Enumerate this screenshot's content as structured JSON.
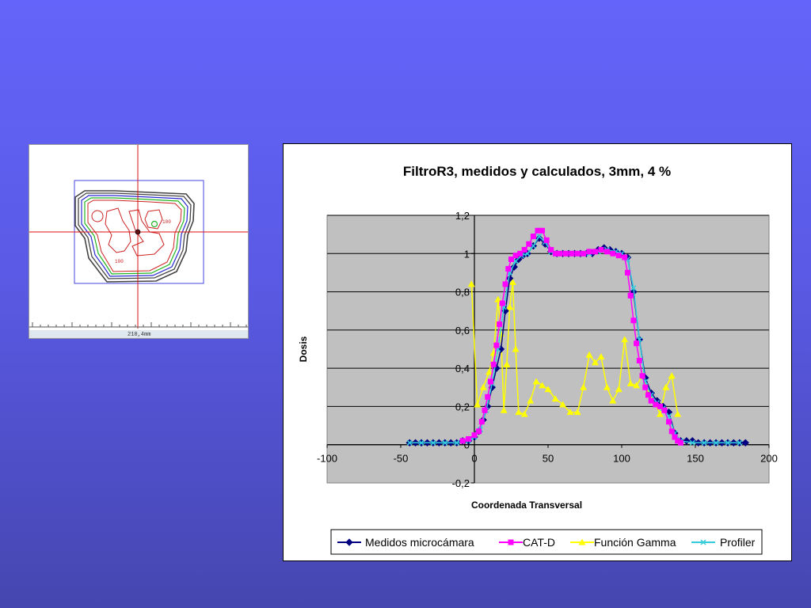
{
  "thumbnail": {
    "scale_label": "210,4mm",
    "contour_labels": [
      "100",
      "100",
      "100"
    ],
    "colors": {
      "contour_outer": "#444444",
      "contour_blue": "#2a2ad0",
      "contour_green": "#22b522",
      "contour_red": "#cc2222",
      "crosshair": "#dd1111",
      "field": "#4444dd"
    }
  },
  "chart_data": {
    "type": "line",
    "title": "FiltroR3, medidos y calculados,  3mm, 4 %",
    "xlabel": "Coordenada Transversal",
    "ylabel": "Dosis",
    "xlim": [
      -100,
      200
    ],
    "ylim": [
      -0.2,
      1.2
    ],
    "xticks": [
      "-100",
      "-50",
      "0",
      "50",
      "100",
      "150",
      "200"
    ],
    "yticks": [
      "-0,2",
      "0",
      "0,2",
      "0,4",
      "0,6",
      "0,8",
      "1",
      "1,2"
    ],
    "grid": true,
    "legend_position": "bottom",
    "plot_background": "#c0c0c0",
    "series": [
      {
        "name": "Medidos microcámara",
        "color": "#000080",
        "marker": "diamond",
        "x": [
          -44,
          -40,
          -36,
          -32,
          -28,
          -24,
          -20,
          -16,
          -12,
          -8,
          -4,
          0,
          3,
          6,
          9,
          12,
          15,
          18,
          21,
          24,
          27,
          30,
          33,
          36,
          40,
          44,
          48,
          52,
          56,
          60,
          64,
          68,
          72,
          76,
          80,
          84,
          88,
          92,
          96,
          100,
          104,
          108,
          112,
          116,
          120,
          124,
          128,
          132,
          136,
          140,
          144,
          148,
          152,
          156,
          160,
          164,
          168,
          172,
          176,
          180,
          184
        ],
        "y": [
          0.01,
          0.01,
          0.01,
          0.01,
          0.01,
          0.01,
          0.01,
          0.01,
          0.01,
          0.02,
          0.02,
          0.04,
          0.07,
          0.13,
          0.2,
          0.3,
          0.4,
          0.5,
          0.7,
          0.87,
          0.93,
          0.97,
          0.99,
          1.0,
          1.04,
          1.08,
          1.05,
          1.01,
          1.0,
          1.0,
          1.0,
          1.0,
          1.0,
          1.0,
          1.0,
          1.02,
          1.03,
          1.02,
          1.01,
          1.0,
          0.98,
          0.8,
          0.55,
          0.35,
          0.27,
          0.23,
          0.2,
          0.17,
          0.06,
          0.02,
          0.02,
          0.02,
          0.01,
          0.01,
          0.01,
          0.01,
          0.01,
          0.01,
          0.01,
          0.01,
          0.01
        ]
      },
      {
        "name": "CAT-D",
        "color": "#ff00ff",
        "marker": "square",
        "x": [
          -8,
          -4,
          0,
          3,
          5,
          7,
          9,
          11,
          13,
          15,
          17,
          19,
          21,
          23,
          25,
          28,
          31,
          34,
          37,
          40,
          43,
          46,
          49,
          52,
          55,
          58,
          62,
          66,
          70,
          74,
          78,
          82,
          86,
          90,
          94,
          98,
          102,
          104,
          106,
          108,
          110,
          112,
          114,
          116,
          118,
          120,
          123,
          126,
          129,
          132,
          134,
          136,
          138,
          140
        ],
        "y": [
          0.02,
          0.03,
          0.05,
          0.07,
          0.12,
          0.18,
          0.25,
          0.33,
          0.42,
          0.52,
          0.63,
          0.74,
          0.84,
          0.92,
          0.97,
          0.99,
          1.0,
          1.02,
          1.05,
          1.09,
          1.12,
          1.12,
          1.07,
          1.02,
          1.0,
          1.0,
          1.0,
          1.0,
          1.0,
          1.0,
          1.01,
          1.01,
          1.02,
          1.01,
          1.0,
          0.99,
          0.98,
          0.9,
          0.78,
          0.65,
          0.53,
          0.44,
          0.36,
          0.3,
          0.26,
          0.23,
          0.21,
          0.2,
          0.18,
          0.12,
          0.07,
          0.04,
          0.02,
          0.01
        ]
      },
      {
        "name": "Función Gamma",
        "color": "#ffff00",
        "marker": "triangle",
        "x": [
          -2,
          2,
          6,
          10,
          13,
          16,
          18,
          20,
          22,
          24,
          26,
          28,
          30,
          34,
          38,
          42,
          46,
          50,
          55,
          60,
          65,
          70,
          74,
          78,
          82,
          86,
          90,
          94,
          98,
          102,
          106,
          110,
          114,
          118,
          122,
          126,
          130,
          134,
          138
        ],
        "y": [
          0.84,
          0.21,
          0.3,
          0.38,
          0.48,
          0.76,
          0.58,
          0.18,
          0.42,
          0.72,
          0.85,
          0.5,
          0.17,
          0.16,
          0.23,
          0.33,
          0.31,
          0.29,
          0.24,
          0.21,
          0.17,
          0.17,
          0.3,
          0.47,
          0.43,
          0.46,
          0.3,
          0.23,
          0.29,
          0.55,
          0.32,
          0.31,
          0.36,
          0.28,
          0.23,
          0.16,
          0.3,
          0.36,
          0.16
        ]
      },
      {
        "name": "Profiler",
        "color": "#33ccdd",
        "marker": "x",
        "x": [
          -44,
          -36,
          -28,
          -20,
          -12,
          -4,
          0,
          4,
          8,
          12,
          16,
          20,
          24,
          28,
          32,
          36,
          40,
          44,
          48,
          52,
          56,
          60,
          66,
          72,
          78,
          84,
          90,
          96,
          100,
          104,
          108,
          112,
          116,
          120,
          124,
          128,
          132,
          136,
          140,
          148,
          156,
          164,
          172,
          180
        ],
        "y": [
          0.01,
          0.01,
          0.01,
          0.01,
          0.01,
          0.02,
          0.04,
          0.08,
          0.18,
          0.32,
          0.5,
          0.72,
          0.9,
          0.96,
          0.99,
          1.0,
          1.04,
          1.09,
          1.06,
          1.01,
          1.0,
          1.0,
          1.0,
          1.0,
          1.0,
          1.01,
          1.02,
          1.01,
          1.0,
          0.97,
          0.82,
          0.55,
          0.33,
          0.26,
          0.22,
          0.19,
          0.15,
          0.06,
          0.02,
          0.01,
          0.01,
          0.01,
          0.01,
          0.01
        ]
      }
    ]
  }
}
